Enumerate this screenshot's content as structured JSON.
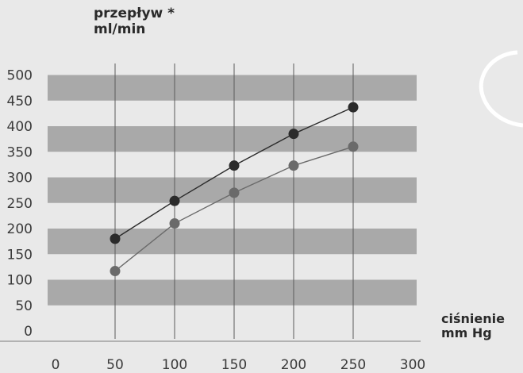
{
  "chart_data": {
    "type": "line",
    "title": "",
    "ylabel": [
      "przepływ *",
      "ml/min"
    ],
    "xlabel": [
      "ciśnienie",
      "mm Hg"
    ],
    "xlim": [
      0,
      300
    ],
    "ylim": [
      0,
      500
    ],
    "x_ticks": [
      "0",
      "50",
      "100",
      "150",
      "200",
      "250",
      "300"
    ],
    "y_ticks": [
      "0",
      "50",
      "100",
      "150",
      "200",
      "250",
      "300",
      "350",
      "400",
      "450",
      "500"
    ],
    "x": [
      50,
      100,
      150,
      200,
      250
    ],
    "series": [
      {
        "values": [
          180,
          254,
          323,
          385,
          437
        ],
        "color": "#2b2b2b"
      },
      {
        "values": [
          117,
          210,
          270,
          323,
          360
        ],
        "color": "#6a6a6a"
      }
    ],
    "bands": [
      [
        450,
        500
      ],
      [
        350,
        400
      ],
      [
        250,
        300
      ],
      [
        150,
        200
      ],
      [
        50,
        100
      ]
    ],
    "band_color": "#a9a9a9",
    "grid_x": true
  }
}
